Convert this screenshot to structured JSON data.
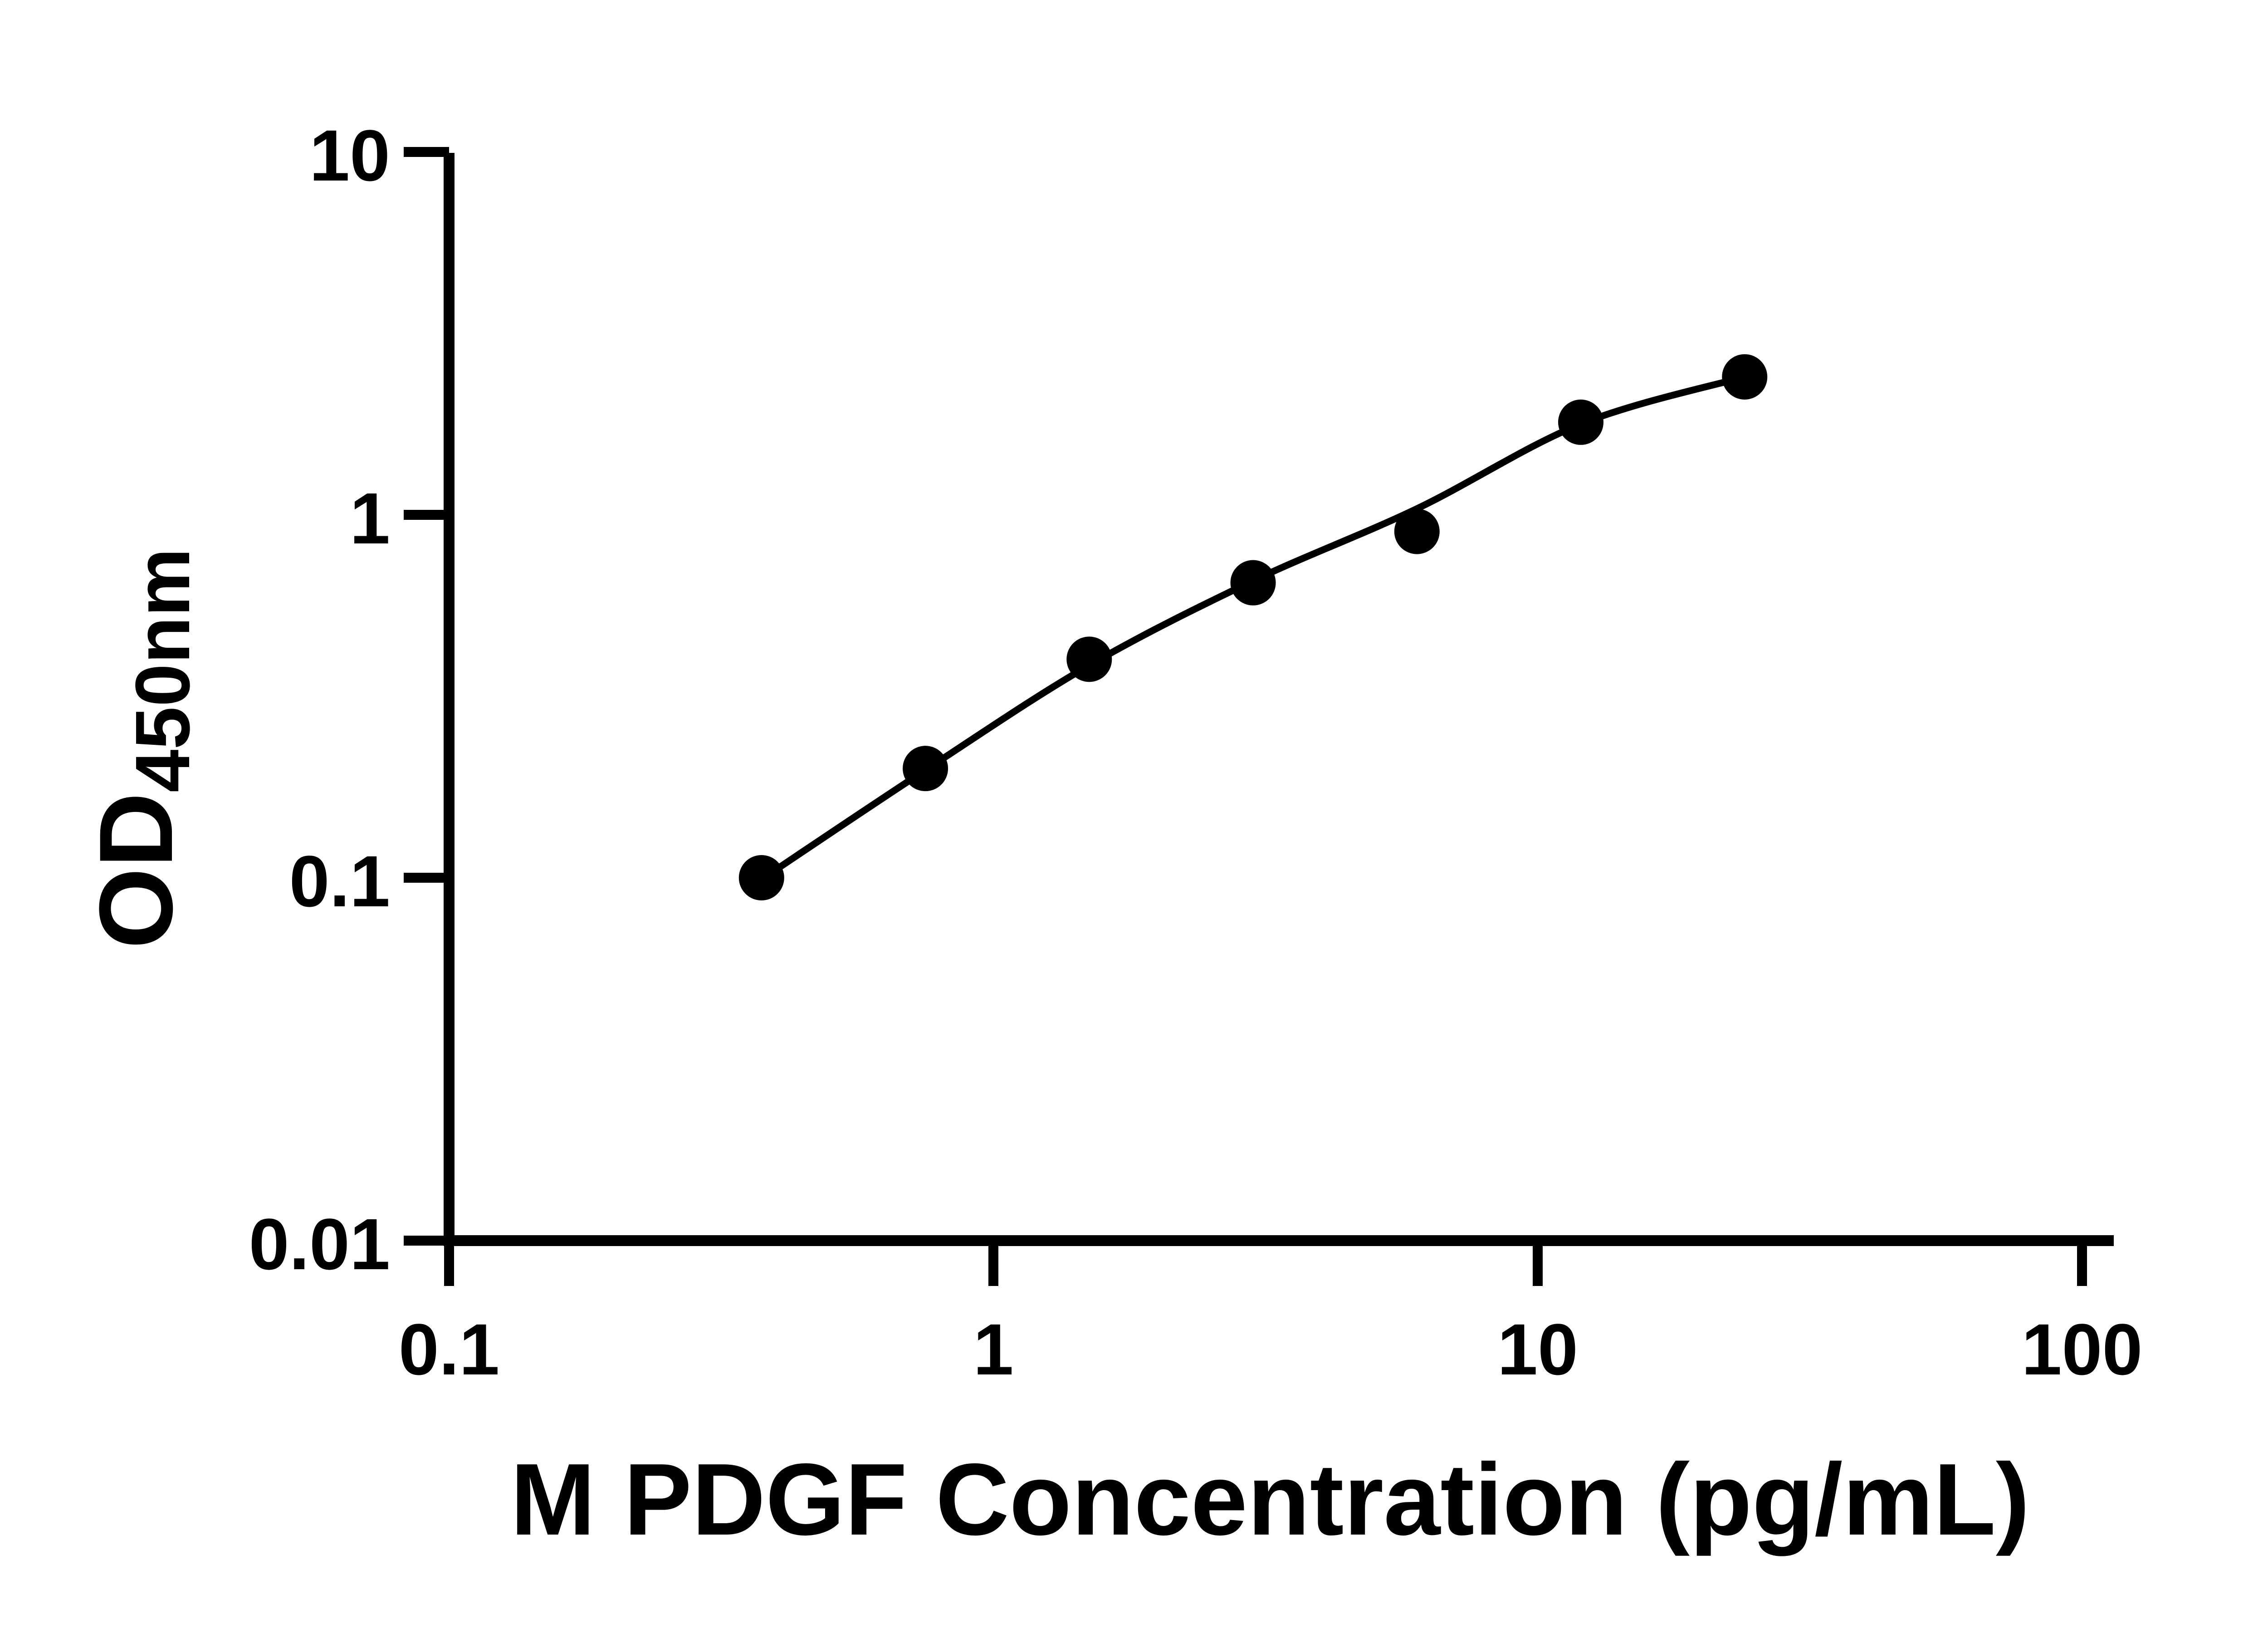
{
  "chart_data": {
    "type": "scatter",
    "title": "",
    "xlabel": "M PDGF Concentration (pg/mL)",
    "ylabel_main": "OD",
    "ylabel_sub": "450nm",
    "x_scale": "log",
    "y_scale": "log",
    "xlim": [
      0.1,
      100
    ],
    "ylim": [
      0.01,
      10
    ],
    "grid": "off",
    "legend": "none",
    "x_ticks": [
      {
        "label": "0.1",
        "value": 0.1
      },
      {
        "label": "1",
        "value": 1
      },
      {
        "label": "10",
        "value": 10
      },
      {
        "label": "100",
        "value": 100
      }
    ],
    "y_ticks": [
      {
        "label": "10",
        "value": 10
      },
      {
        "label": "1",
        "value": 1
      },
      {
        "label": "0.1",
        "value": 0.1
      },
      {
        "label": "0.01",
        "value": 0.01
      }
    ],
    "points": [
      {
        "x": 0.375,
        "y": 0.1
      },
      {
        "x": 0.75,
        "y": 0.2
      },
      {
        "x": 1.5,
        "y": 0.4
      },
      {
        "x": 3,
        "y": 0.65
      },
      {
        "x": 6,
        "y": 0.9
      },
      {
        "x": 12,
        "y": 1.8
      },
      {
        "x": 24,
        "y": 2.4
      }
    ],
    "fit_curve": [
      {
        "x": 0.375,
        "y": 0.099
      },
      {
        "x": 0.75,
        "y": 0.198
      },
      {
        "x": 1.5,
        "y": 0.385
      },
      {
        "x": 3,
        "y": 0.658
      },
      {
        "x": 6,
        "y": 1.04
      },
      {
        "x": 12,
        "y": 1.78
      },
      {
        "x": 24,
        "y": 2.4
      }
    ],
    "marker_color": "#000000",
    "line_color": "#000000",
    "axis_color": "#000000",
    "background": "#ffffff"
  }
}
